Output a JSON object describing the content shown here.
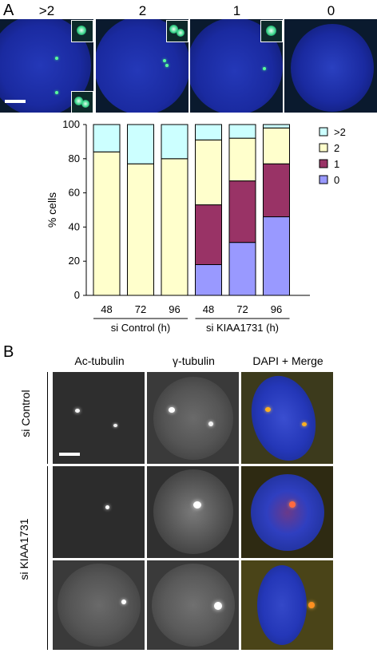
{
  "panels": {
    "a": {
      "letter": "A"
    },
    "b": {
      "letter": "B"
    }
  },
  "panel_a": {
    "image_labels": [
      ">2",
      "2",
      "1",
      "0"
    ]
  },
  "panel_b": {
    "column_labels": [
      "Ac-tubulin",
      "γ-tubulin",
      "DAPI + Merge"
    ],
    "row_labels": [
      "si Control",
      "si KIAA1731"
    ]
  },
  "colors": {
    "gt2": "#ccffff",
    "two": "#ffffcc",
    "one": "#993366",
    "zero": "#9999ff",
    "dapi": "#1a2ea8"
  },
  "chart_data": {
    "type": "bar",
    "stacked": true,
    "categories": [
      "48",
      "72",
      "96",
      "48",
      "72",
      "96"
    ],
    "groups": [
      {
        "label": "si Control (h)",
        "categories": [
          "48",
          "72",
          "96"
        ]
      },
      {
        "label": "si KIAA1731 (h)",
        "categories": [
          "48",
          "72",
          "96"
        ]
      }
    ],
    "series": [
      {
        "name": "0",
        "color": "#9999ff",
        "values": [
          0,
          0,
          0,
          18,
          31,
          46
        ]
      },
      {
        "name": "1",
        "color": "#993366",
        "values": [
          0,
          0,
          0,
          35,
          36,
          31
        ]
      },
      {
        "name": "2",
        "color": "#ffffcc",
        "values": [
          84,
          77,
          80,
          38,
          25,
          21
        ]
      },
      {
        "name": ">2",
        "color": "#ccffff",
        "values": [
          16,
          23,
          20,
          9,
          8,
          2
        ]
      }
    ],
    "legend_order": [
      ">2",
      "2",
      "1",
      "0"
    ],
    "legend_position": "right",
    "ylabel": "% cells",
    "ylim": [
      0,
      100
    ],
    "yticks": [
      0,
      20,
      40,
      60,
      80,
      100
    ],
    "grid": false
  }
}
